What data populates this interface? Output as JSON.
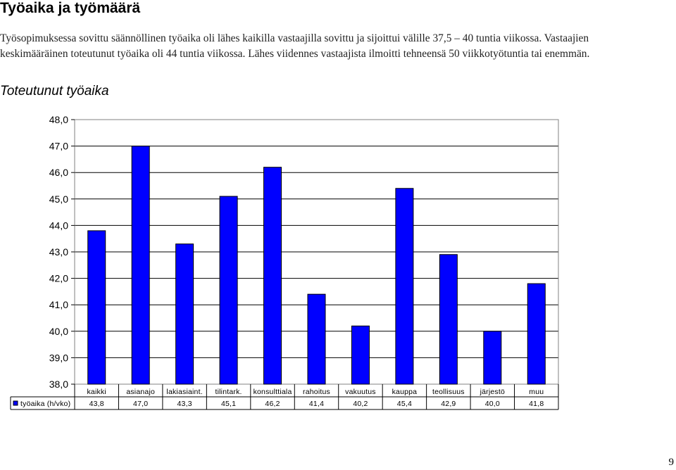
{
  "heading": "Työaika ja työmäärä",
  "intro": "Työsopimuksessa sovittu säännöllinen työaika oli lähes kaikilla vastaajilla sovittu ja sijoittui välille 37,5 – 40 tuntia viikossa. Vastaajien keskimääräinen toteutunut työaika oli 44 tuntia viikossa. Lähes viidennes vastaajista ilmoitti tehneensä 50 viikkotyötuntia tai enemmän.",
  "page_number": "9",
  "colors": {
    "bar_fill": "#0000ff",
    "bar_stroke": "#000000",
    "grid": "#000000",
    "plot_border": "#808080"
  },
  "chart_data": {
    "type": "bar",
    "title": "Toteutunut työaika",
    "categories": [
      "kaikki",
      "asianajo",
      "lakiasiaint.",
      "tilintark.",
      "konsulttiala",
      "rahoitus",
      "vakuutus",
      "kauppa",
      "teollisuus",
      "järjestö",
      "muu"
    ],
    "series": [
      {
        "name": "työaika (h/vko)",
        "values": [
          43.8,
          47.0,
          43.3,
          45.1,
          46.2,
          41.4,
          40.2,
          45.4,
          42.9,
          40.0,
          41.8
        ]
      }
    ],
    "value_labels": [
      "43,8",
      "47,0",
      "43,3",
      "45,1",
      "46,2",
      "41,4",
      "40,2",
      "45,4",
      "42,9",
      "40,0",
      "41,8"
    ],
    "y_tick_labels": [
      "48,0",
      "47,0",
      "46,0",
      "45,0",
      "44,0",
      "43,0",
      "42,0",
      "41,0",
      "40,0",
      "39,0",
      "38,0"
    ],
    "ylim": [
      38,
      48
    ],
    "ystep": 1,
    "grid": true,
    "legend": "data-table"
  }
}
